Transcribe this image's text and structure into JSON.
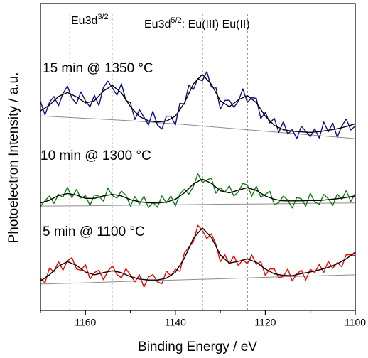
{
  "chart_data": {
    "type": "line",
    "xlabel": "Binding Energy / eV",
    "ylabel": "Photoelectron Intensity / a.u.",
    "xlim": [
      1170,
      1100
    ],
    "ylim": [
      0,
      100
    ],
    "xticks": [
      1160,
      1140,
      1120,
      1100
    ],
    "xminor": [
      1170,
      1150,
      1130,
      1110
    ],
    "fit_color": "#000000",
    "background_color": "#8c8c8c",
    "annotations": [
      {
        "text": "Eu3d",
        "sup": "3/2"
      },
      {
        "text": "Eu3d",
        "sup": "5/2",
        "rest": ": Eu(III) Eu(II)"
      }
    ],
    "vlines": [
      {
        "x": 1163.5,
        "color": "#b0b0b0"
      },
      {
        "x": 1154,
        "color": "#c8c8c8"
      },
      {
        "x": 1134,
        "color": "#333333"
      },
      {
        "x": 1124,
        "color": "#555555"
      }
    ],
    "series": [
      {
        "name": "15 min @ 1350 °C",
        "color": "#0d0d96",
        "x": [
          1170,
          1169,
          1168,
          1167,
          1166,
          1165,
          1164,
          1163,
          1162,
          1161,
          1160,
          1159,
          1158,
          1157,
          1156,
          1155,
          1154,
          1153,
          1152,
          1151,
          1150,
          1149,
          1148,
          1147,
          1146,
          1145,
          1144,
          1143,
          1142,
          1141,
          1140,
          1139,
          1138,
          1137,
          1136,
          1135,
          1134,
          1133,
          1132,
          1131,
          1130,
          1129,
          1128,
          1127,
          1126,
          1125,
          1124,
          1123,
          1122,
          1121,
          1120,
          1119,
          1118,
          1117,
          1116,
          1115,
          1114,
          1113,
          1112,
          1111,
          1110,
          1109,
          1108,
          1107,
          1106,
          1105,
          1104,
          1103,
          1102,
          1101,
          1100
        ],
        "values": [
          68.1,
          63.7,
          67.8,
          69.7,
          66.7,
          70.7,
          73.1,
          69.1,
          67.4,
          71.2,
          68.3,
          66.3,
          70.1,
          66.8,
          72.7,
          74.7,
          72.5,
          70.1,
          73.9,
          68.4,
          67.7,
          62.2,
          65.4,
          63.0,
          60.4,
          64.9,
          60.4,
          59.1,
          63.3,
          63.3,
          60.4,
          67.5,
          67.2,
          73.4,
          72.0,
          75.5,
          74.8,
          77.8,
          72.8,
          72.7,
          65.6,
          68.4,
          68.5,
          66.2,
          68.1,
          72.2,
          67.8,
          69.3,
          69.1,
          62.5,
          64.5,
          61.1,
          62.6,
          58.0,
          61.5,
          57.5,
          58.9,
          56.0,
          60.0,
          58.4,
          56.6,
          59.2,
          56.2,
          61.4,
          58.2,
          61.0,
          56.5,
          60.0,
          62.4,
          58.8,
          60.1
        ],
        "fit": {
          "x": [
            1170,
            1168,
            1166,
            1164,
            1162,
            1160,
            1158,
            1156,
            1154,
            1152,
            1150,
            1148,
            1146,
            1144,
            1142,
            1140,
            1138,
            1136,
            1134,
            1132,
            1130,
            1128,
            1126,
            1124,
            1122,
            1120,
            1118,
            1116,
            1114,
            1112,
            1110,
            1108,
            1106,
            1104,
            1102,
            1100
          ],
          "values": [
            65.0,
            66.9,
            69.7,
            71.0,
            69.6,
            67.6,
            68.3,
            71.5,
            73.3,
            70.9,
            66.4,
            63.2,
            61.8,
            61.4,
            61.7,
            63.3,
            67.6,
            73.8,
            76.9,
            73.7,
            68.3,
            66.4,
            68.6,
            70.0,
            67.7,
            63.3,
            60.3,
            58.9,
            58.4,
            58.2,
            58.0,
            58.3,
            58.7,
            59.2,
            59.9,
            60.8
          ]
        },
        "background": {
          "x": [
            1170,
            1160,
            1150,
            1140,
            1130,
            1120,
            1110,
            1100
          ],
          "values": [
            63.4,
            62.6,
            61.8,
            60.8,
            59.6,
            58.4,
            57.2,
            56.0
          ]
        }
      },
      {
        "name": "10 min @ 1300 °C",
        "color": "#0a820a",
        "x": [
          1170,
          1169,
          1168,
          1167,
          1166,
          1165,
          1164,
          1163,
          1162,
          1161,
          1160,
          1159,
          1158,
          1157,
          1156,
          1155,
          1154,
          1153,
          1152,
          1151,
          1150,
          1149,
          1148,
          1147,
          1146,
          1145,
          1144,
          1143,
          1142,
          1141,
          1140,
          1139,
          1138,
          1137,
          1136,
          1135,
          1134,
          1133,
          1132,
          1131,
          1130,
          1129,
          1128,
          1127,
          1126,
          1125,
          1124,
          1123,
          1122,
          1121,
          1120,
          1119,
          1118,
          1117,
          1116,
          1115,
          1114,
          1113,
          1112,
          1111,
          1110,
          1109,
          1108,
          1107,
          1106,
          1105,
          1104,
          1103,
          1102,
          1101,
          1100
        ],
        "values": [
          33.9,
          35.7,
          37.3,
          34.9,
          37.8,
          36.9,
          40.1,
          36.7,
          39.4,
          36.6,
          37.4,
          34.2,
          37.6,
          37.2,
          35.6,
          39.8,
          37.4,
          36.6,
          38.9,
          37.5,
          34.0,
          37.1,
          34.7,
          37.2,
          33.5,
          35.2,
          33.6,
          37.3,
          35.0,
          37.3,
          34.0,
          37.9,
          39.5,
          37.9,
          40.4,
          44.5,
          41.7,
          42.5,
          43.1,
          38.2,
          40.0,
          38.5,
          40.6,
          37.3,
          38.6,
          41.4,
          40.9,
          37.2,
          40.5,
          36.9,
          37.8,
          38.8,
          34.5,
          35.1,
          37.3,
          35.9,
          33.4,
          36.8,
          36.4,
          34.0,
          38.2,
          35.3,
          34.6,
          37.8,
          36.4,
          34.2,
          37.9,
          36.2,
          39.0,
          35.5,
          38.1
        ],
        "fit": {
          "x": [
            1170,
            1168,
            1166,
            1164,
            1162,
            1160,
            1158,
            1156,
            1154,
            1152,
            1150,
            1148,
            1146,
            1144,
            1142,
            1140,
            1138,
            1136,
            1134,
            1132,
            1130,
            1128,
            1126,
            1124,
            1122,
            1120,
            1118,
            1116,
            1114,
            1112,
            1110,
            1108,
            1106,
            1104,
            1102,
            1100
          ],
          "values": [
            35.0,
            35.9,
            37.4,
            38.1,
            37.6,
            36.5,
            36.5,
            37.3,
            37.8,
            37.3,
            36.1,
            35.4,
            35.1,
            35.0,
            35.3,
            36.2,
            38.3,
            41.2,
            42.8,
            41.4,
            39.0,
            38.3,
            39.2,
            40.0,
            39.1,
            37.3,
            36.2,
            35.7,
            35.7,
            35.7,
            35.8,
            35.8,
            36.1,
            36.4,
            36.8,
            37.3
          ]
        },
        "background": {
          "x": [
            1170,
            1160,
            1150,
            1140,
            1130,
            1120,
            1110,
            1100
          ],
          "values": [
            34.0,
            34.1,
            34.3,
            34.4,
            34.6,
            34.7,
            34.9,
            35.0
          ]
        }
      },
      {
        "name": "5 min @ 1100 °C",
        "color": "#ff0000",
        "x": [
          1170,
          1169,
          1168,
          1167,
          1166,
          1165,
          1164,
          1163,
          1162,
          1161,
          1160,
          1159,
          1158,
          1157,
          1156,
          1155,
          1154,
          1153,
          1152,
          1151,
          1150,
          1149,
          1148,
          1147,
          1146,
          1145,
          1144,
          1143,
          1142,
          1141,
          1140,
          1139,
          1138,
          1137,
          1136,
          1135,
          1134,
          1133,
          1132,
          1131,
          1130,
          1129,
          1128,
          1127,
          1126,
          1125,
          1124,
          1123,
          1122,
          1121,
          1120,
          1119,
          1118,
          1117,
          1116,
          1115,
          1114,
          1113,
          1112,
          1111,
          1110,
          1109,
          1108,
          1107,
          1106,
          1105,
          1104,
          1103,
          1102,
          1101,
          1100
        ],
        "values": [
          10.4,
          9.0,
          13.8,
          12.6,
          15.9,
          13.1,
          16.2,
          17.2,
          13.5,
          13.1,
          14.9,
          10.2,
          12.3,
          13.1,
          10.0,
          12.8,
          14.5,
          11.7,
          10.6,
          13.6,
          11.5,
          9.3,
          11.6,
          7.6,
          10.8,
          11.7,
          9.3,
          8.7,
          12.8,
          11.2,
          13.4,
          12.7,
          18.7,
          20.6,
          22.4,
          27.7,
          26.1,
          23.4,
          25.0,
          21.6,
          15.9,
          18.2,
          15.1,
          17.8,
          14.6,
          16.5,
          15.2,
          18.1,
          15.0,
          15.9,
          11.4,
          13.5,
          13.5,
          10.6,
          11.0,
          13.5,
          9.6,
          11.9,
          13.1,
          9.9,
          13.4,
          12.3,
          15.0,
          12.4,
          16.0,
          13.7,
          15.6,
          14.2,
          18.2,
          18.1,
          17.9
        ],
        "fit": {
          "x": [
            1170,
            1168,
            1166,
            1164,
            1162,
            1160,
            1158,
            1156,
            1154,
            1152,
            1150,
            1148,
            1146,
            1144,
            1142,
            1140,
            1138,
            1136,
            1134,
            1132,
            1130,
            1128,
            1126,
            1124,
            1122,
            1120,
            1118,
            1116,
            1114,
            1112,
            1110,
            1108,
            1106,
            1104,
            1102,
            1100
          ],
          "values": [
            9.6,
            11.6,
            14.4,
            15.9,
            14.7,
            12.5,
            11.6,
            12.3,
            12.9,
            12.3,
            11.0,
            10.2,
            9.9,
            9.9,
            10.5,
            12.4,
            17.0,
            23.5,
            26.9,
            23.8,
            18.1,
            15.4,
            16.0,
            16.8,
            15.7,
            13.5,
            11.9,
            11.4,
            11.3,
            12.0,
            12.5,
            13.2,
            14.0,
            15.2,
            16.8,
            19.0
          ]
        },
        "background": {
          "x": [
            1170,
            1160,
            1150,
            1140,
            1130,
            1120,
            1110,
            1100
          ],
          "values": [
            8.6,
            9.0,
            9.5,
            9.9,
            10.3,
            10.8,
            11.2,
            11.6
          ]
        }
      }
    ]
  }
}
